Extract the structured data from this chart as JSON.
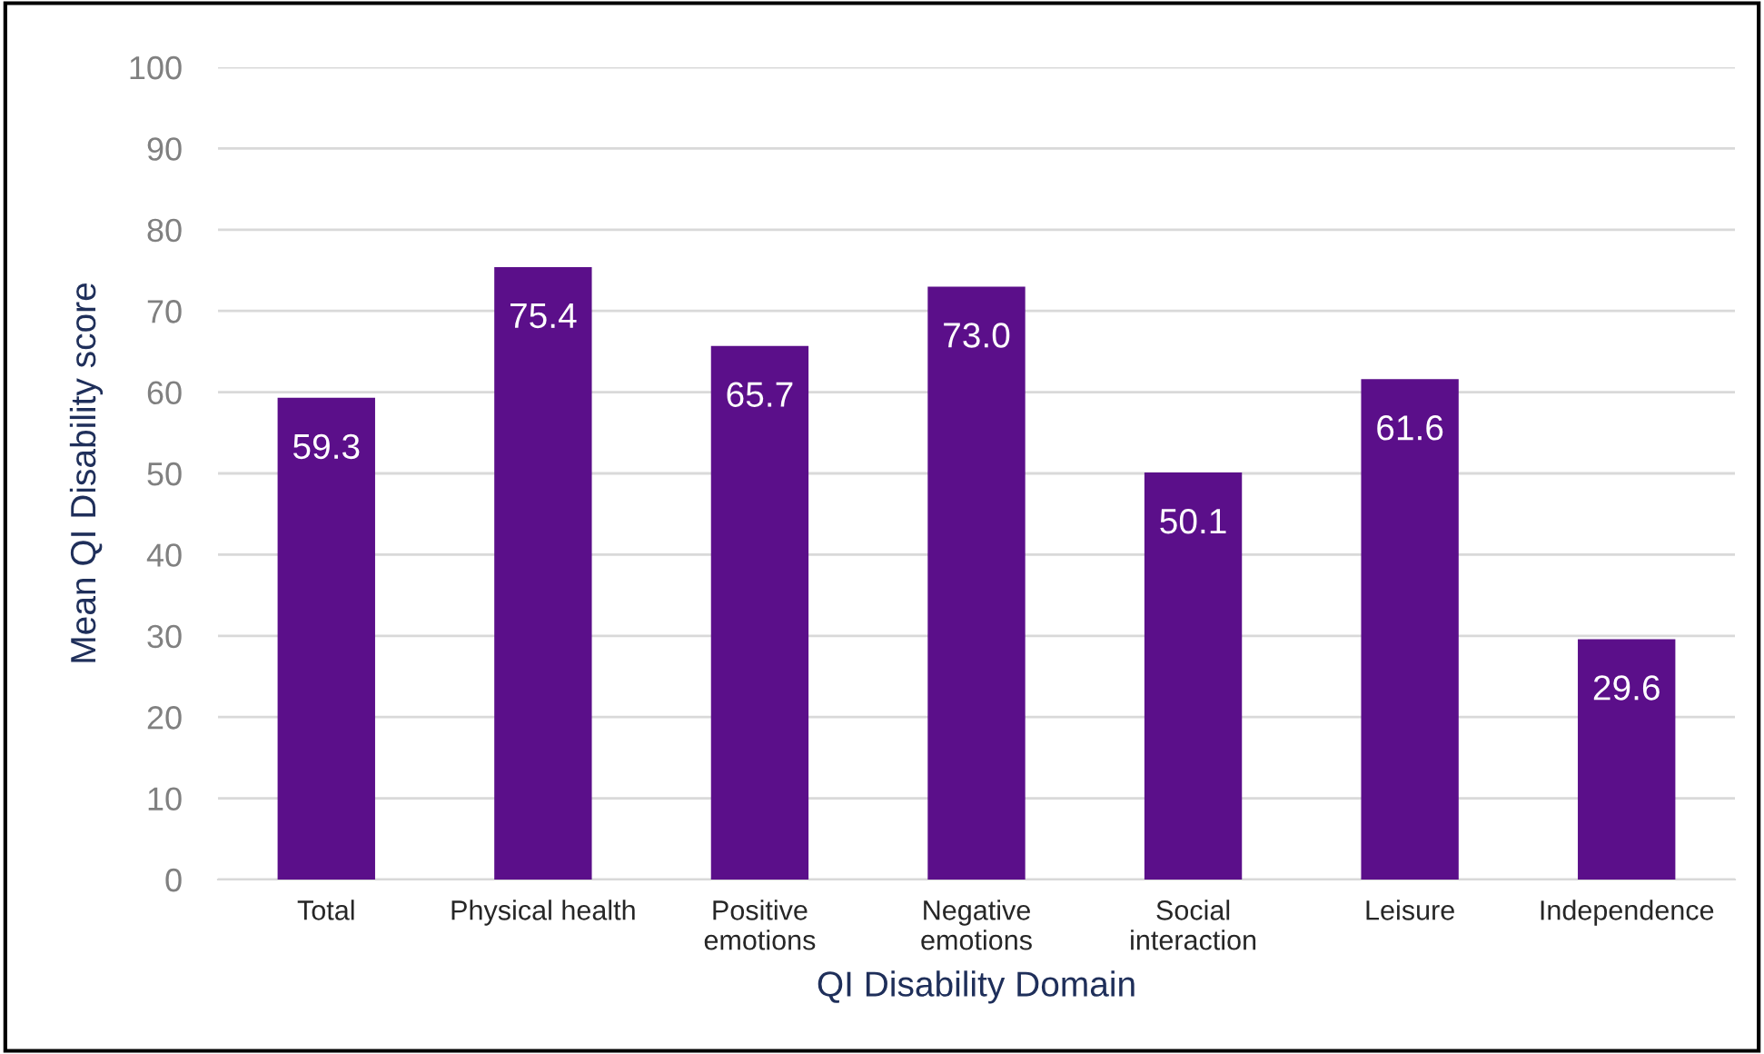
{
  "chart_data": {
    "type": "bar",
    "xlabel": "QI Disability Domain",
    "ylabel": "Mean QI Disability score",
    "categories": [
      "Total",
      "Physical health",
      "Positive\nemotions",
      "Negative\nemotions",
      "Social\ninteraction",
      "Leisure",
      "Independence"
    ],
    "values": [
      59.3,
      75.4,
      65.7,
      73.0,
      50.1,
      61.6,
      29.6
    ],
    "value_labels": [
      "59.3",
      "75.4",
      "65.7",
      "73.0",
      "50.1",
      "61.6",
      "29.6"
    ],
    "color": "#5b0f8a",
    "ylim": [
      0,
      100
    ],
    "yticks": [
      0,
      10,
      20,
      30,
      40,
      50,
      60,
      70,
      80,
      90,
      100
    ],
    "grid": "y",
    "legend": false
  }
}
